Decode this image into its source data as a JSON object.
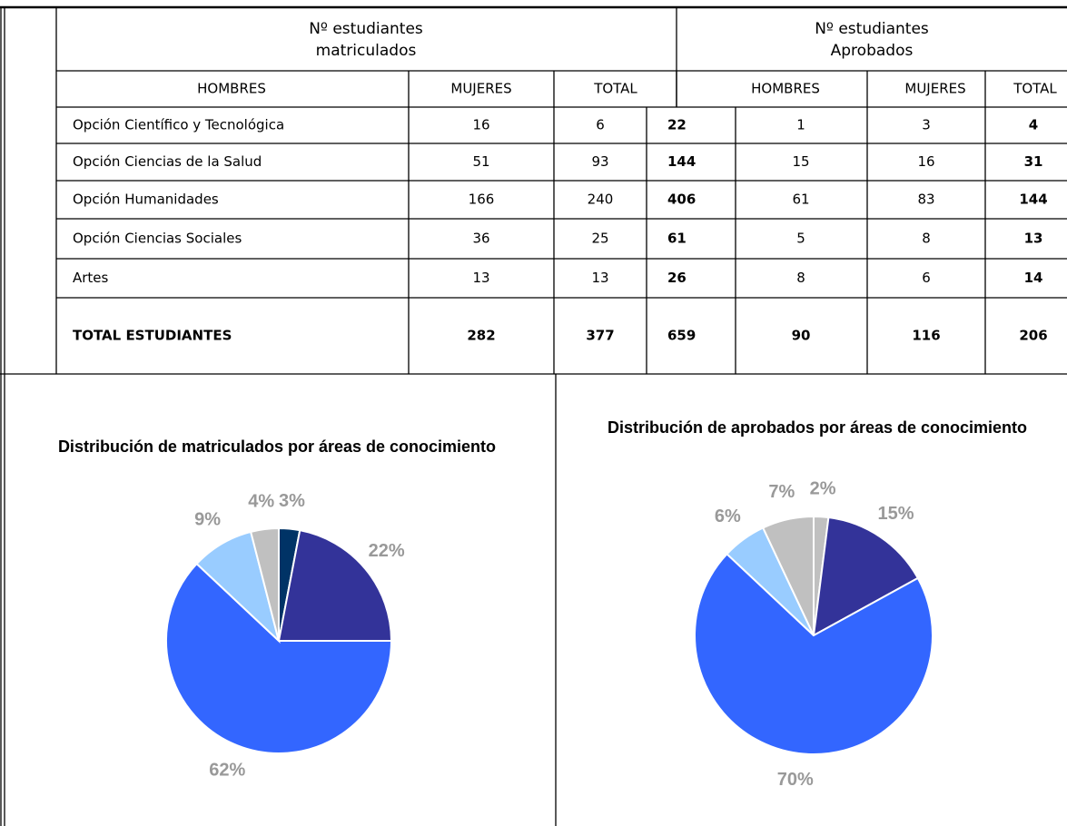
{
  "table": {
    "groups": [
      [
        "Nº estudiantes",
        "matriculados"
      ],
      [
        "Nº estudiantes",
        "Aprobados"
      ]
    ],
    "columns": [
      "HOMBRES",
      "MUJERES",
      "TOTAL",
      "HOMBRES",
      "MUJERES",
      "TOTAL"
    ],
    "rows": [
      [
        "Opción Científico y Tecnológica",
        16,
        6,
        22,
        1,
        3,
        4
      ],
      [
        "Opción Ciencias de la Salud",
        51,
        93,
        144,
        15,
        16,
        31
      ],
      [
        "Opción Humanidades",
        166,
        240,
        406,
        61,
        83,
        144
      ],
      [
        "Opción Ciencias  Sociales",
        36,
        25,
        61,
        5,
        8,
        13
      ],
      [
        "Artes",
        13,
        13,
        26,
        8,
        6,
        14
      ],
      [
        "TOTAL  ESTUDIANTES",
        282,
        377,
        659,
        90,
        116,
        206
      ]
    ]
  },
  "chart_data": [
    {
      "type": "pie",
      "title": "Distribución de matriculados por áreas de conocimiento",
      "values": [
        3,
        22,
        62,
        9,
        4
      ],
      "value_labels": [
        "3%",
        "22%",
        "62%",
        "9%",
        "4%"
      ],
      "colors": [
        "#003366",
        "#333399",
        "#3366ff",
        "#99ccff",
        "#c0c0c0"
      ]
    },
    {
      "type": "pie",
      "title": "Distribución de aprobados por áreas de conocimiento",
      "values": [
        2,
        15,
        70,
        6,
        7
      ],
      "value_labels": [
        "2%",
        "15%",
        "70%",
        "6%",
        "7%"
      ],
      "colors": [
        "#c0c0c0",
        "#333399",
        "#3366ff",
        "#99ccff",
        "#c0c0c0"
      ]
    }
  ]
}
